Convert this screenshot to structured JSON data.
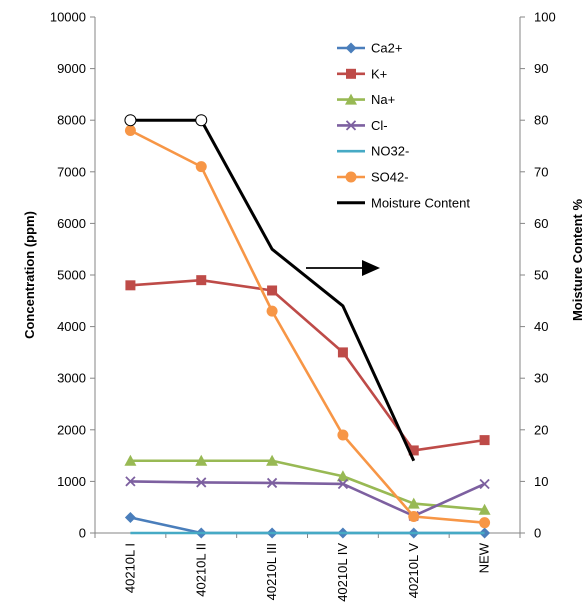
{
  "chart_data": {
    "type": "line",
    "categories": [
      "40210L I",
      "40210L II",
      "40210L III",
      "40210L IV",
      "40210L V",
      "NEW"
    ],
    "ylabel": "Concentration (ppm)",
    "y2label": "Moisture Content %",
    "ylim": [
      0,
      10000
    ],
    "y2lim": [
      0,
      100
    ],
    "yticks": [
      "0",
      "1000",
      "2000",
      "3000",
      "4000",
      "5000",
      "6000",
      "7000",
      "8000",
      "9000",
      "10000"
    ],
    "y2ticks": [
      "0",
      "10",
      "20",
      "30",
      "40",
      "50",
      "60",
      "70",
      "80",
      "90",
      "100"
    ],
    "grid": false,
    "legend_position": "top-right",
    "series": [
      {
        "name": "Ca2+",
        "color": "#4a7ebb",
        "marker": "diamond",
        "axis": "left",
        "values": [
          300,
          0,
          0,
          0,
          0,
          0
        ]
      },
      {
        "name": "K+",
        "color": "#be4b48",
        "marker": "square",
        "axis": "left",
        "values": [
          4800,
          4900,
          4700,
          3500,
          1600,
          1800
        ]
      },
      {
        "name": "Na+",
        "color": "#98b954",
        "marker": "triangle",
        "axis": "left",
        "values": [
          1400,
          1400,
          1400,
          1100,
          570,
          450
        ]
      },
      {
        "name": "Cl-",
        "color": "#7d60a0",
        "marker": "x",
        "axis": "left",
        "values": [
          1000,
          980,
          970,
          950,
          330,
          950
        ]
      },
      {
        "name": "NO32-",
        "color": "#46aac5",
        "marker": "none",
        "axis": "left",
        "values": [
          0,
          0,
          0,
          0,
          0,
          0
        ]
      },
      {
        "name": "SO42-",
        "color": "#f79646",
        "marker": "circle",
        "axis": "left",
        "values": [
          7800,
          7100,
          4300,
          1900,
          320,
          200
        ]
      },
      {
        "name": "Moisture Content",
        "color": "#000000",
        "marker": "none",
        "axis": "right",
        "values": [
          80,
          80,
          55,
          44,
          14,
          null
        ],
        "open_circle_points": [
          0,
          1
        ]
      }
    ]
  }
}
